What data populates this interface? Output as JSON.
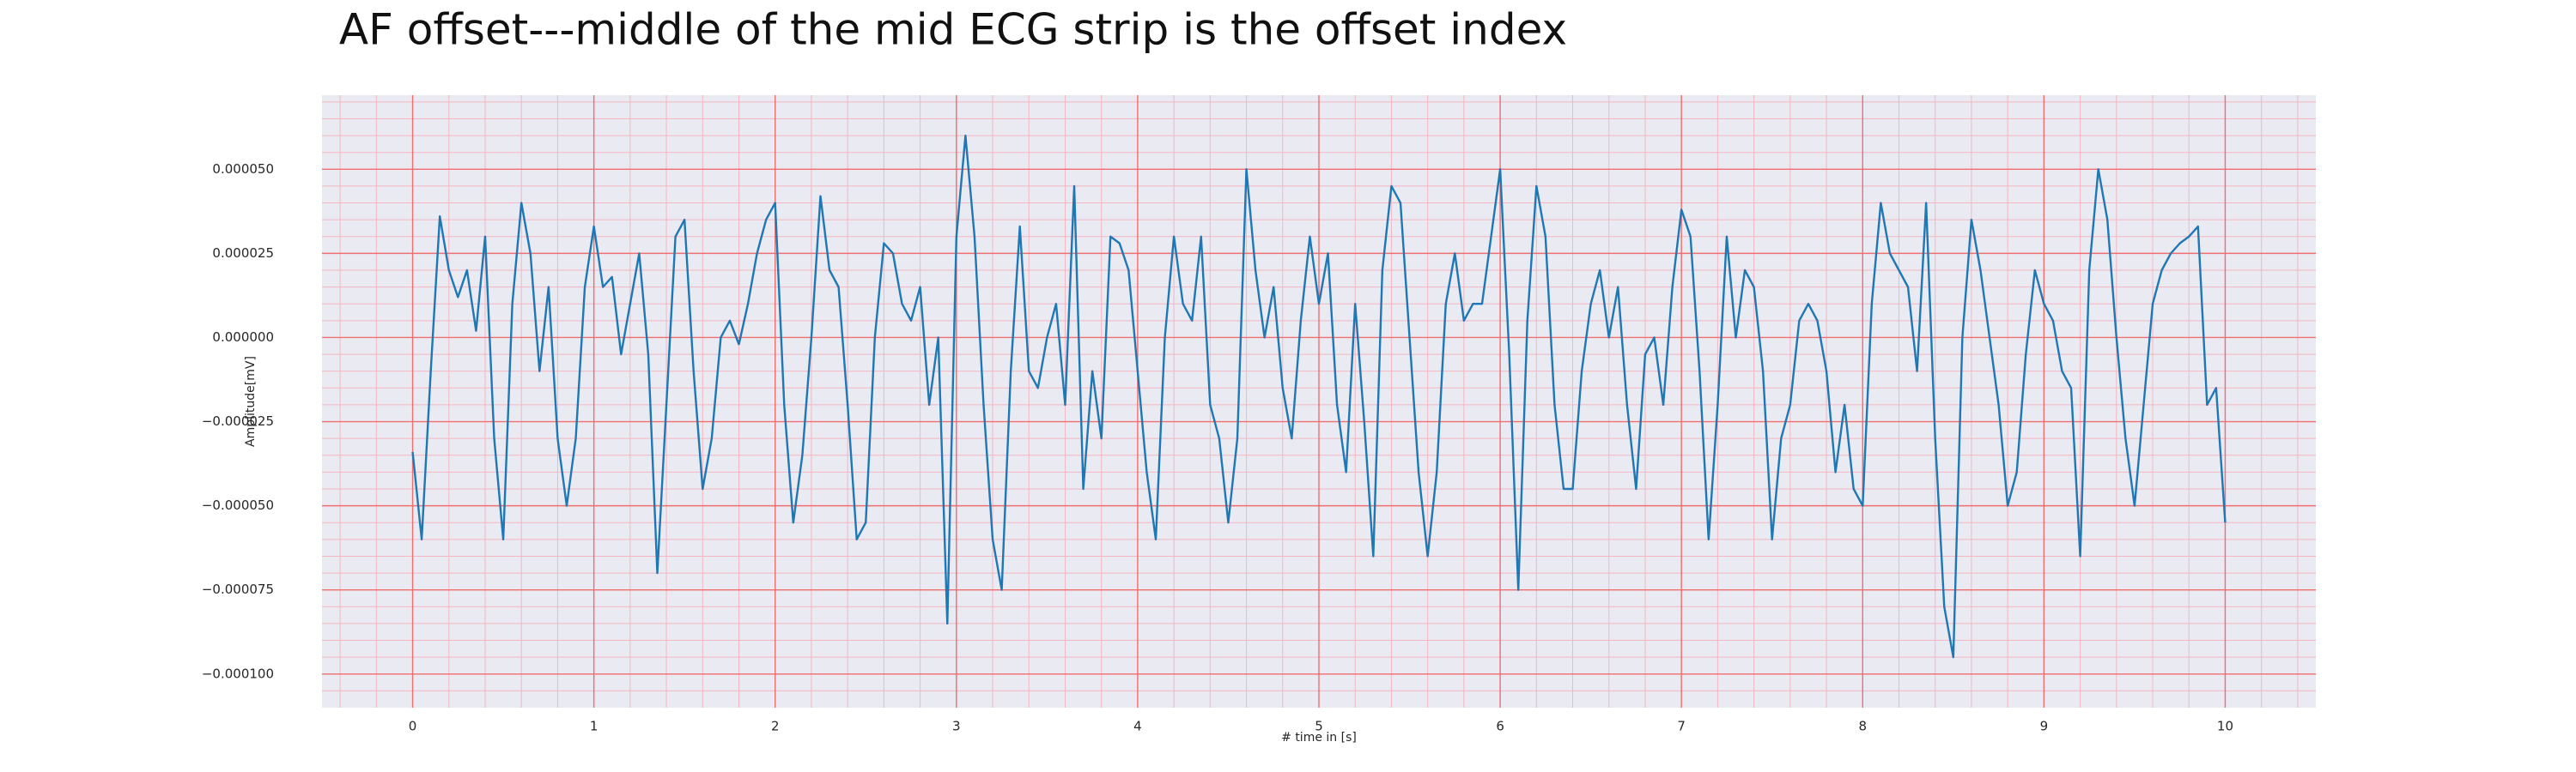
{
  "chart_data": {
    "type": "line",
    "title": "AF offset---middle of the mid ECG strip is the offset index",
    "xlabel": "# time in [s]",
    "ylabel": "Amplitude[mV]",
    "xlim": [
      -0.5,
      10.5
    ],
    "ylim": [
      -0.00011,
      7.2e-05
    ],
    "xticks": [
      0,
      1,
      2,
      3,
      4,
      5,
      6,
      7,
      8,
      9,
      10
    ],
    "yticks": [
      {
        "value": -0.0001,
        "label": "−0.000100"
      },
      {
        "value": -7.5e-05,
        "label": "−0.000075"
      },
      {
        "value": -5e-05,
        "label": "−0.000050"
      },
      {
        "value": -2.5e-05,
        "label": "−0.000025"
      },
      {
        "value": 0,
        "label": "0.000000"
      },
      {
        "value": 2.5e-05,
        "label": "0.000025"
      },
      {
        "value": 5e-05,
        "label": "0.000050"
      }
    ],
    "grid": true,
    "minor_grid": true,
    "x": [
      0,
      0.05,
      0.1,
      0.15,
      0.2,
      0.25,
      0.3,
      0.35,
      0.4,
      0.45,
      0.5,
      0.55,
      0.6,
      0.65,
      0.7,
      0.75,
      0.8,
      0.85,
      0.9,
      0.95,
      1,
      1.05,
      1.1,
      1.15,
      1.2,
      1.25,
      1.3,
      1.35,
      1.4,
      1.45,
      1.5,
      1.55,
      1.6,
      1.65,
      1.7,
      1.75,
      1.8,
      1.85,
      1.9,
      1.95,
      2,
      2.05,
      2.1,
      2.15,
      2.2,
      2.25,
      2.3,
      2.35,
      2.4,
      2.45,
      2.5,
      2.55,
      2.6,
      2.65,
      2.7,
      2.75,
      2.8,
      2.85,
      2.9,
      2.95,
      3,
      3.05,
      3.1,
      3.15,
      3.2,
      3.25,
      3.3,
      3.35,
      3.4,
      3.45,
      3.5,
      3.55,
      3.6,
      3.65,
      3.7,
      3.75,
      3.8,
      3.85,
      3.9,
      3.95,
      4,
      4.05,
      4.1,
      4.15,
      4.2,
      4.25,
      4.3,
      4.35,
      4.4,
      4.45,
      4.5,
      4.55,
      4.6,
      4.65,
      4.7,
      4.75,
      4.8,
      4.85,
      4.9,
      4.95,
      5,
      5.05,
      5.1,
      5.15,
      5.2,
      5.25,
      5.3,
      5.35,
      5.4,
      5.45,
      5.5,
      5.55,
      5.6,
      5.65,
      5.7,
      5.75,
      5.8,
      5.85,
      5.9,
      5.95,
      6,
      6.05,
      6.1,
      6.15,
      6.2,
      6.25,
      6.3,
      6.35,
      6.4,
      6.45,
      6.5,
      6.55,
      6.6,
      6.65,
      6.7,
      6.75,
      6.8,
      6.85,
      6.9,
      6.95,
      7,
      7.05,
      7.1,
      7.15,
      7.2,
      7.25,
      7.3,
      7.35,
      7.4,
      7.45,
      7.5,
      7.55,
      7.6,
      7.65,
      7.7,
      7.75,
      7.8,
      7.85,
      7.9,
      7.95,
      8,
      8.05,
      8.1,
      8.15,
      8.2,
      8.25,
      8.3,
      8.35,
      8.4,
      8.45,
      8.5,
      8.55,
      8.6,
      8.65,
      8.7,
      8.75,
      8.8,
      8.85,
      8.9,
      8.95,
      9,
      9.05,
      9.1,
      9.15,
      9.2,
      9.25,
      9.3,
      9.35,
      9.4,
      9.45,
      9.5,
      9.55,
      9.6,
      9.65,
      9.7,
      9.75,
      9.8,
      9.85,
      9.9,
      9.95,
      10
    ],
    "series": [
      {
        "color": "#1f77b4",
        "values": [
          -3.4e-05,
          -6e-05,
          -1e-05,
          3.6e-05,
          2e-05,
          1.2e-05,
          2e-05,
          2e-06,
          3e-05,
          -3e-05,
          -6e-05,
          1e-05,
          4e-05,
          2.5e-05,
          -1e-05,
          1.5e-05,
          -3e-05,
          -5e-05,
          -3e-05,
          1.5e-05,
          3.3e-05,
          1.5e-05,
          1.8e-05,
          -5e-06,
          1e-05,
          2.5e-05,
          -5e-06,
          -7e-05,
          -2e-05,
          3e-05,
          3.5e-05,
          -1e-05,
          -4.5e-05,
          -3e-05,
          0,
          5e-06,
          -2e-06,
          1e-05,
          2.5e-05,
          3.5e-05,
          4e-05,
          -2e-05,
          -5.5e-05,
          -3.5e-05,
          0,
          4.2e-05,
          2e-05,
          1.5e-05,
          -2e-05,
          -6e-05,
          -5.5e-05,
          0,
          2.8e-05,
          2.5e-05,
          1e-05,
          5e-06,
          1.5e-05,
          -2e-05,
          0,
          -8.5e-05,
          3e-05,
          6e-05,
          3e-05,
          -2e-05,
          -6e-05,
          -7.5e-05,
          -1e-05,
          3.3e-05,
          -1e-05,
          -1.5e-05,
          0,
          1e-05,
          -2e-05,
          4.5e-05,
          -4.5e-05,
          -1e-05,
          -3e-05,
          3e-05,
          2.8e-05,
          2e-05,
          -1e-05,
          -4e-05,
          -6e-05,
          0,
          3e-05,
          1e-05,
          5e-06,
          3e-05,
          -2e-05,
          -3e-05,
          -5.5e-05,
          -3e-05,
          5e-05,
          2e-05,
          0,
          1.5e-05,
          -1.5e-05,
          -3e-05,
          5e-06,
          3e-05,
          1e-05,
          2.5e-05,
          -2e-05,
          -4e-05,
          1e-05,
          -2.5e-05,
          -6.5e-05,
          2e-05,
          4.5e-05,
          4e-05,
          0,
          -4e-05,
          -6.5e-05,
          -4e-05,
          1e-05,
          2.5e-05,
          5e-06,
          1e-05,
          1e-05,
          3e-05,
          5e-05,
          -5e-06,
          -7.5e-05,
          5e-06,
          4.5e-05,
          3e-05,
          -2e-05,
          -4.5e-05,
          -4.5e-05,
          -1e-05,
          1e-05,
          2e-05,
          0,
          1.5e-05,
          -2e-05,
          -4.5e-05,
          -5e-06,
          0,
          -2e-05,
          1.5e-05,
          3.8e-05,
          3e-05,
          -1e-05,
          -6e-05,
          -2e-05,
          3e-05,
          0,
          2e-05,
          1.5e-05,
          -1e-05,
          -6e-05,
          -3e-05,
          -2e-05,
          5e-06,
          1e-05,
          5e-06,
          -1e-05,
          -4e-05,
          -2e-05,
          -4.5e-05,
          -5e-05,
          1e-05,
          4e-05,
          2.5e-05,
          2e-05,
          1.5e-05,
          -1e-05,
          4e-05,
          -3e-05,
          -8e-05,
          -9.5e-05,
          0,
          3.5e-05,
          2e-05,
          0,
          -2e-05,
          -5e-05,
          -4e-05,
          -5e-06,
          2e-05,
          1e-05,
          5e-06,
          -1e-05,
          -1.5e-05,
          -6.5e-05,
          2e-05,
          5e-05,
          3.5e-05,
          0,
          -3e-05,
          -5e-05,
          -2e-05,
          1e-05,
          2e-05,
          2.5e-05,
          2.8e-05,
          3e-05,
          3.3e-05,
          -2e-05,
          -1.5e-05,
          -5.5e-05
        ]
      }
    ]
  }
}
